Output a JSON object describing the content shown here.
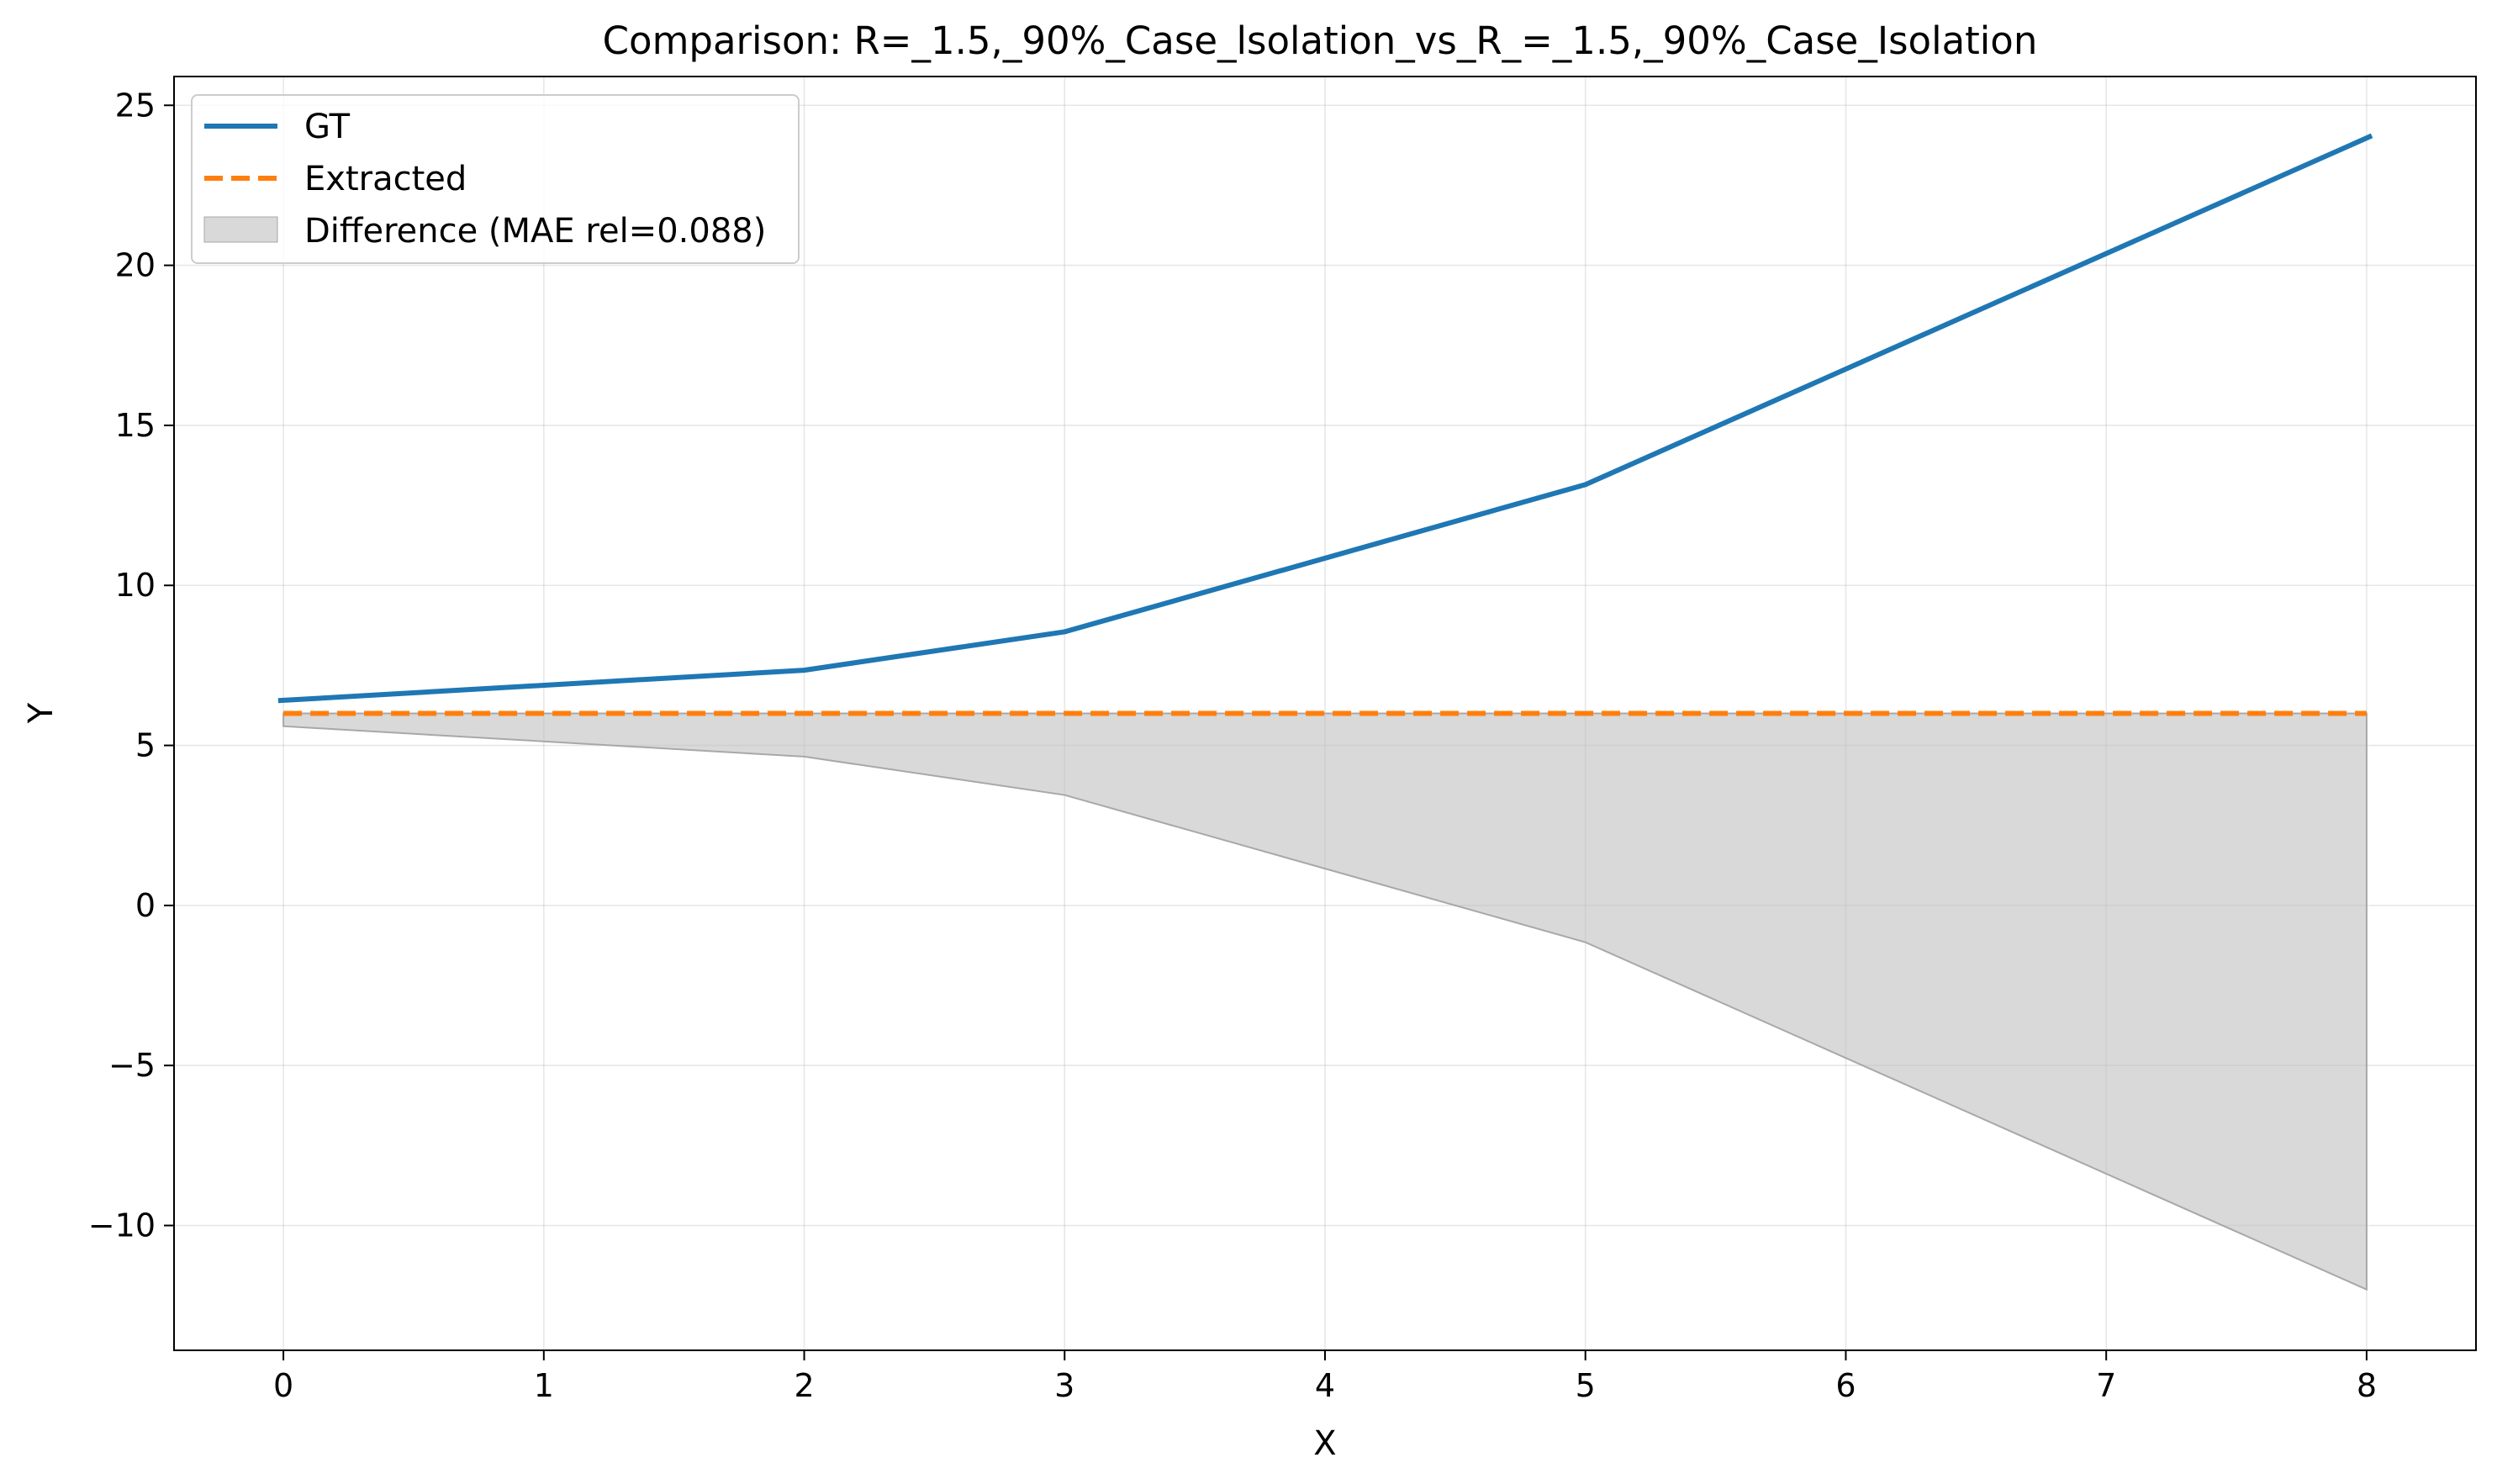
{
  "chart_data": {
    "type": "line",
    "title": "Comparison: R=_1.5,_90%_Case_lsolation_vs_R_=_1.5,_90%_Case_Isolation",
    "xlabel": "X",
    "ylabel": "Y",
    "xlim": [
      -0.42,
      8.42
    ],
    "ylim": [
      -13.9,
      25.9
    ],
    "x_ticks": [
      0,
      1,
      2,
      3,
      4,
      5,
      6,
      7,
      8
    ],
    "x_tick_labels": [
      "0",
      "1",
      "2",
      "3",
      "4",
      "5",
      "6",
      "7",
      "8"
    ],
    "y_ticks": [
      -10,
      -5,
      0,
      5,
      10,
      15,
      20,
      25
    ],
    "y_tick_labels": [
      "−10",
      "−5",
      "0",
      "5",
      "10",
      "15",
      "20",
      "25"
    ],
    "grid": true,
    "legend_position": "top-left",
    "series": [
      {
        "name": "GT",
        "style": "solid",
        "color": "#1f77b4",
        "x": [
          -0.02,
          2,
          3,
          5,
          8.02
        ],
        "y": [
          6.4,
          7.35,
          8.55,
          13.15,
          24.05
        ]
      },
      {
        "name": "Extracted",
        "style": "dashed",
        "color": "#ff7f0e",
        "x": [
          0,
          8
        ],
        "y": [
          6.0,
          6.0
        ]
      }
    ],
    "difference_fill": {
      "name": "Difference (MAE rel=0.088)",
      "color": "#bfbfbf",
      "x": [
        0,
        2,
        3,
        5,
        8
      ],
      "upper": [
        6.0,
        6.0,
        6.0,
        6.0,
        6.0
      ],
      "lower": [
        5.6,
        4.65,
        3.45,
        -1.15,
        -12.0
      ]
    }
  }
}
